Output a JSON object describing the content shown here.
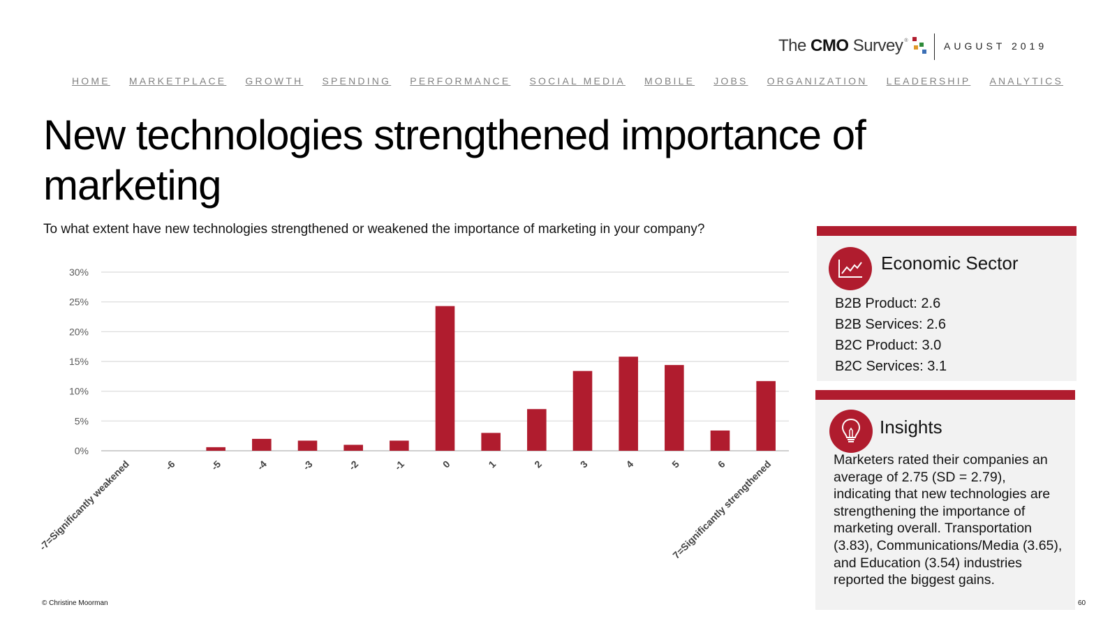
{
  "header": {
    "logo_text_pre": "The ",
    "logo_text_bold": "CMO",
    "logo_text_post": " Survey",
    "logo_mark": "®",
    "date": "AUGUST 2019"
  },
  "nav": [
    "HOME",
    "MARKETPLACE",
    "GROWTH",
    "SPENDING",
    "PERFORMANCE",
    "SOCIAL MEDIA",
    "MOBILE",
    "JOBS",
    "ORGANIZATION",
    "LEADERSHIP",
    "ANALYTICS"
  ],
  "title": "New technologies strengthened importance of marketing",
  "question": "To what extent have new technologies strengthened or weakened the importance of marketing in your company?",
  "chart_data": {
    "type": "bar",
    "categories": [
      "-7=Significantly weakened",
      "-6",
      "-5",
      "-4",
      "-3",
      "-2",
      "-1",
      "0",
      "1",
      "2",
      "3",
      "4",
      "5",
      "6",
      "7=Significantly strengthened"
    ],
    "values": [
      0,
      0,
      0.6,
      2.0,
      1.7,
      1.0,
      1.7,
      24.3,
      3.0,
      7.0,
      13.4,
      15.8,
      14.4,
      3.4,
      11.7
    ],
    "yticks": [
      "0%",
      "5%",
      "10%",
      "15%",
      "20%",
      "25%",
      "30%"
    ],
    "ylim": [
      0,
      30
    ],
    "title": "",
    "xlabel": "",
    "ylabel": "",
    "bar_color": "#b01c2e",
    "grid": true
  },
  "sector_panel": {
    "heading": "Economic Sector",
    "icon": "line-chart-icon",
    "items": [
      "B2B Product: 2.6",
      "B2B Services: 2.6",
      "B2C Product: 3.0",
      "B2C Services: 3.1"
    ]
  },
  "insights_panel": {
    "heading": "Insights",
    "icon": "lightbulb-icon",
    "text": "Marketers rated their companies an average of 2.75 (SD = 2.79), indicating that new technologies are strengthening the importance of marketing overall. Transportation (3.83), Communications/Media (3.65), and Education (3.54) industries reported the biggest gains."
  },
  "footer": {
    "copyright": "© Christine Moorman",
    "page": "60"
  },
  "colors": {
    "accent": "#b01c2e",
    "panel_bg": "#f2f2f2",
    "nav_text": "#808080"
  }
}
